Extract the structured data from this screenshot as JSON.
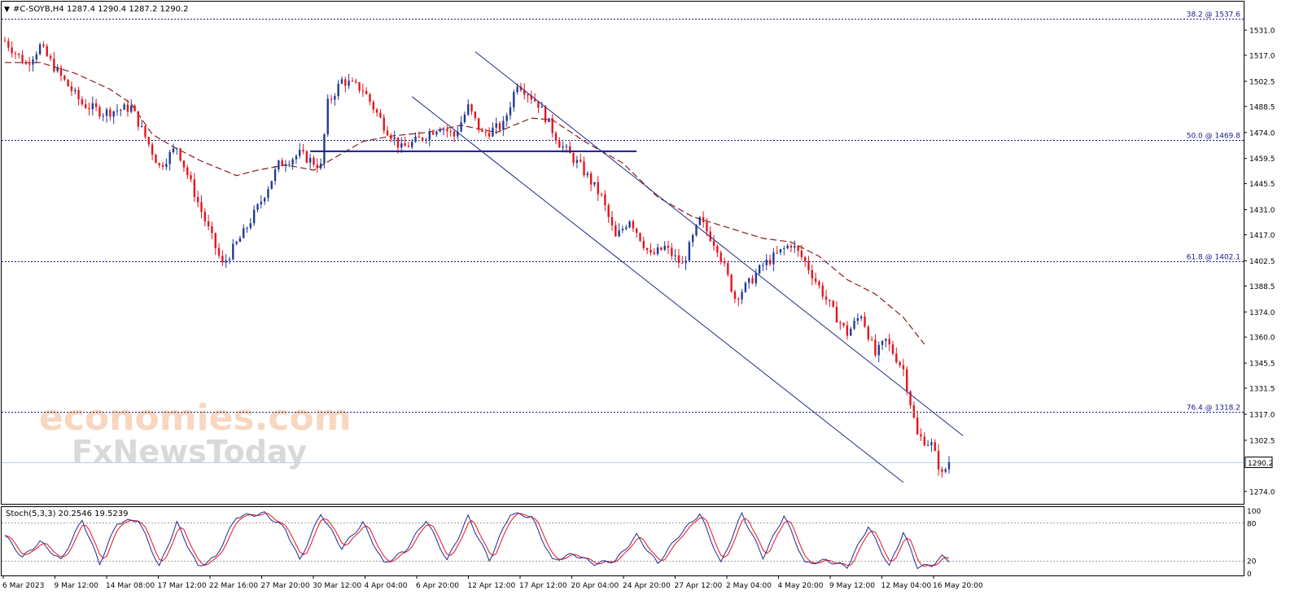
{
  "header": {
    "symbol_timeframe": "#C-SOYB,H4",
    "ohlc": "1287.4 1290.4 1287.2 1290.2"
  },
  "colors": {
    "bull": "#1f3a93",
    "bear": "#e8121b",
    "ma": "#8b1a1a",
    "channel": "#1f2b8f",
    "level": "#1a1a8c",
    "stoch_main": "#1f2b8f",
    "stoch_signal": "#e8121b",
    "current_price_line": "#b0d4e8",
    "frame": "#000000"
  },
  "price_axis_labels": [
    "1531.0",
    "1517.0",
    "1502.5",
    "1488.5",
    "1474.0",
    "1459.5",
    "1445.5",
    "1431.0",
    "1417.0",
    "1402.5",
    "1388.5",
    "1374.0",
    "1360.0",
    "1345.5",
    "1331.5",
    "1317.0",
    "1302.5",
    "1274.0"
  ],
  "current_price_label": "1290.2",
  "fib_levels": [
    {
      "label": "38.2 @ 1537.6",
      "price": 1537.6
    },
    {
      "label": "50.0 @ 1469.8",
      "price": 1469.8
    },
    {
      "label": "61.8 @ 1402.1",
      "price": 1402.1
    },
    {
      "label": "76.4 @ 1318.2",
      "price": 1318.2
    }
  ],
  "date_labels": [
    "6 Mar 2023",
    "9 Mar 12:00",
    "14 Mar 08:00",
    "17 Mar 12:00",
    "22 Mar 16:00",
    "27 Mar 20:00",
    "30 Mar 12:00",
    "4 Apr 04:00",
    "6 Apr 20:00",
    "12 Apr 12:00",
    "17 Apr 12:00",
    "20 Apr 04:00",
    "24 Apr 20:00",
    "27 Apr 12:00",
    "2 May 04:00",
    "4 May 20:00",
    "9 May 12:00",
    "12 May 04:00",
    "16 May 20:00"
  ],
  "indicator": {
    "label": "Stoch(5,3,3) 20.2546 19.5239",
    "axis_labels": [
      "100",
      "80",
      "20",
      "0"
    ]
  },
  "watermark": {
    "line1": "economies.com",
    "line2": "FxNewsToday"
  },
  "chart_data": {
    "type": "candlestick",
    "symbol": "#C-SOYB",
    "timeframe": "H4",
    "ylim": [
      1268,
      1546
    ],
    "grid": false,
    "price_path": [
      {
        "i": 0,
        "close": 1525
      },
      {
        "i": 6,
        "close": 1512
      },
      {
        "i": 10,
        "close": 1522
      },
      {
        "i": 16,
        "close": 1505
      },
      {
        "i": 22,
        "close": 1490
      },
      {
        "i": 28,
        "close": 1485
      },
      {
        "i": 36,
        "close": 1488
      },
      {
        "i": 44,
        "close": 1455
      },
      {
        "i": 49,
        "close": 1466
      },
      {
        "i": 56,
        "close": 1430
      },
      {
        "i": 62,
        "close": 1400
      },
      {
        "i": 68,
        "close": 1418
      },
      {
        "i": 72,
        "close": 1432
      },
      {
        "i": 78,
        "close": 1456
      },
      {
        "i": 84,
        "close": 1462
      },
      {
        "i": 90,
        "close": 1455
      },
      {
        "i": 92,
        "close": 1490
      },
      {
        "i": 96,
        "close": 1503
      },
      {
        "i": 102,
        "close": 1498
      },
      {
        "i": 108,
        "close": 1478
      },
      {
        "i": 113,
        "close": 1465
      },
      {
        "i": 118,
        "close": 1470
      },
      {
        "i": 124,
        "close": 1478
      },
      {
        "i": 128,
        "close": 1472
      },
      {
        "i": 132,
        "close": 1488
      },
      {
        "i": 136,
        "close": 1473
      },
      {
        "i": 142,
        "close": 1478
      },
      {
        "i": 146,
        "close": 1502
      },
      {
        "i": 152,
        "close": 1490
      },
      {
        "i": 158,
        "close": 1468
      },
      {
        "i": 164,
        "close": 1455
      },
      {
        "i": 170,
        "close": 1438
      },
      {
        "i": 174,
        "close": 1415
      },
      {
        "i": 178,
        "close": 1426
      },
      {
        "i": 184,
        "close": 1405
      },
      {
        "i": 188,
        "close": 1410
      },
      {
        "i": 193,
        "close": 1400
      },
      {
        "i": 198,
        "close": 1425
      },
      {
        "i": 203,
        "close": 1410
      },
      {
        "i": 208,
        "close": 1382
      },
      {
        "i": 212,
        "close": 1390
      },
      {
        "i": 216,
        "close": 1400
      },
      {
        "i": 220,
        "close": 1406
      },
      {
        "i": 224,
        "close": 1412
      },
      {
        "i": 228,
        "close": 1402
      },
      {
        "i": 232,
        "close": 1388
      },
      {
        "i": 236,
        "close": 1374
      },
      {
        "i": 240,
        "close": 1362
      },
      {
        "i": 244,
        "close": 1373
      },
      {
        "i": 248,
        "close": 1350
      },
      {
        "i": 251,
        "close": 1358
      },
      {
        "i": 256,
        "close": 1342
      },
      {
        "i": 260,
        "close": 1305
      },
      {
        "i": 264,
        "close": 1300
      },
      {
        "i": 267,
        "close": 1283
      },
      {
        "i": 269,
        "close": 1290.2
      }
    ],
    "moving_average": [
      {
        "i": 0,
        "value": 1513
      },
      {
        "i": 10,
        "value": 1513
      },
      {
        "i": 20,
        "value": 1507
      },
      {
        "i": 30,
        "value": 1498
      },
      {
        "i": 36,
        "value": 1490
      },
      {
        "i": 42,
        "value": 1473
      },
      {
        "i": 48,
        "value": 1466
      },
      {
        "i": 56,
        "value": 1458
      },
      {
        "i": 66,
        "value": 1450
      },
      {
        "i": 72,
        "value": 1453
      },
      {
        "i": 80,
        "value": 1456
      },
      {
        "i": 88,
        "value": 1453
      },
      {
        "i": 94,
        "value": 1460
      },
      {
        "i": 102,
        "value": 1469
      },
      {
        "i": 110,
        "value": 1472
      },
      {
        "i": 120,
        "value": 1474
      },
      {
        "i": 130,
        "value": 1478
      },
      {
        "i": 140,
        "value": 1474
      },
      {
        "i": 150,
        "value": 1482
      },
      {
        "i": 156,
        "value": 1481
      },
      {
        "i": 166,
        "value": 1468
      },
      {
        "i": 176,
        "value": 1457
      },
      {
        "i": 186,
        "value": 1438
      },
      {
        "i": 196,
        "value": 1427
      },
      {
        "i": 206,
        "value": 1421
      },
      {
        "i": 216,
        "value": 1415
      },
      {
        "i": 224,
        "value": 1413
      },
      {
        "i": 232,
        "value": 1405
      },
      {
        "i": 240,
        "value": 1392
      },
      {
        "i": 248,
        "value": 1384
      },
      {
        "i": 256,
        "value": 1371
      },
      {
        "i": 262,
        "value": 1356
      }
    ],
    "horizontal_line": {
      "price": 1463.5,
      "from_i": 87,
      "to_i": 180
    },
    "channel": {
      "upper": [
        {
          "i": 134,
          "price": 1519
        },
        {
          "i": 273,
          "price": 1305
        }
      ],
      "lower": [
        {
          "i": 116,
          "price": 1494
        },
        {
          "i": 256,
          "price": 1279
        }
      ]
    },
    "stochastic": {
      "params": "5,3,3",
      "main": 20.2546,
      "signal": 19.5239,
      "levels": [
        80,
        20
      ],
      "ylim": [
        0,
        100
      ],
      "main_path": [
        {
          "i": 0,
          "value": 60
        },
        {
          "i": 5,
          "value": 25
        },
        {
          "i": 10,
          "value": 50
        },
        {
          "i": 16,
          "value": 20
        },
        {
          "i": 22,
          "value": 85
        },
        {
          "i": 27,
          "value": 15
        },
        {
          "i": 32,
          "value": 80
        },
        {
          "i": 38,
          "value": 85
        },
        {
          "i": 44,
          "value": 10
        },
        {
          "i": 49,
          "value": 80
        },
        {
          "i": 55,
          "value": 10
        },
        {
          "i": 60,
          "value": 25
        },
        {
          "i": 66,
          "value": 90
        },
        {
          "i": 74,
          "value": 95
        },
        {
          "i": 80,
          "value": 70
        },
        {
          "i": 84,
          "value": 20
        },
        {
          "i": 90,
          "value": 95
        },
        {
          "i": 96,
          "value": 40
        },
        {
          "i": 102,
          "value": 80
        },
        {
          "i": 108,
          "value": 15
        },
        {
          "i": 114,
          "value": 35
        },
        {
          "i": 120,
          "value": 85
        },
        {
          "i": 126,
          "value": 20
        },
        {
          "i": 132,
          "value": 90
        },
        {
          "i": 138,
          "value": 20
        },
        {
          "i": 144,
          "value": 95
        },
        {
          "i": 150,
          "value": 90
        },
        {
          "i": 156,
          "value": 20
        },
        {
          "i": 162,
          "value": 30
        },
        {
          "i": 168,
          "value": 15
        },
        {
          "i": 174,
          "value": 20
        },
        {
          "i": 180,
          "value": 60
        },
        {
          "i": 186,
          "value": 15
        },
        {
          "i": 192,
          "value": 60
        },
        {
          "i": 198,
          "value": 95
        },
        {
          "i": 204,
          "value": 15
        },
        {
          "i": 210,
          "value": 95
        },
        {
          "i": 216,
          "value": 25
        },
        {
          "i": 222,
          "value": 92
        },
        {
          "i": 228,
          "value": 15
        },
        {
          "i": 234,
          "value": 20
        },
        {
          "i": 240,
          "value": 10
        },
        {
          "i": 246,
          "value": 75
        },
        {
          "i": 252,
          "value": 10
        },
        {
          "i": 256,
          "value": 65
        },
        {
          "i": 260,
          "value": 10
        },
        {
          "i": 264,
          "value": 12
        },
        {
          "i": 267,
          "value": 26
        },
        {
          "i": 269,
          "value": 20
        }
      ]
    },
    "visible_candles": 270
  }
}
